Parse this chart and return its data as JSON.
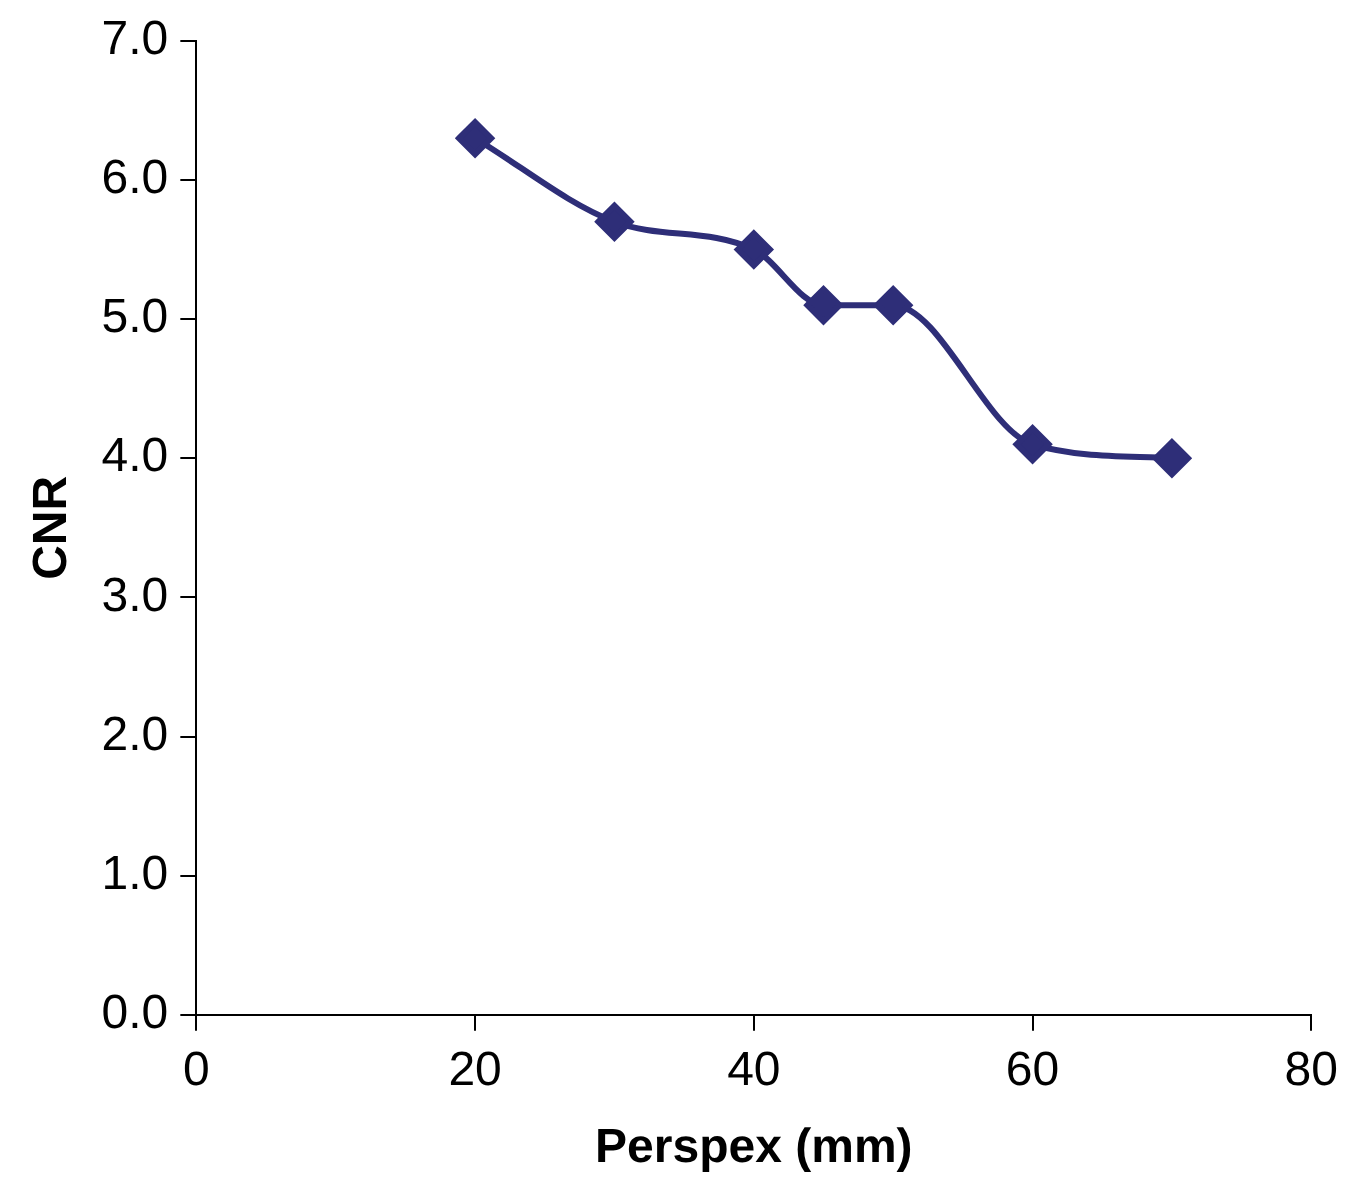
{
  "chart_data": {
    "type": "line",
    "xlabel": "Perspex (mm)",
    "ylabel": "CNR",
    "x": [
      20,
      30,
      40,
      45,
      50,
      60,
      70
    ],
    "series": [
      {
        "color": "#2e2e78",
        "values": [
          6.3,
          5.7,
          5.5,
          5.1,
          5.1,
          4.1,
          4.0
        ]
      }
    ],
    "xlim": [
      0,
      80
    ],
    "xticks": [
      0,
      20,
      40,
      60,
      80
    ],
    "ylim": [
      0,
      7
    ],
    "yticks": [
      {
        "value": 0,
        "label": "0.0"
      },
      {
        "value": 1,
        "label": "1.0"
      },
      {
        "value": 2,
        "label": "2.0"
      },
      {
        "value": 3,
        "label": "3.0"
      },
      {
        "value": 4,
        "label": "4.0"
      },
      {
        "value": 5,
        "label": "5.0"
      },
      {
        "value": 6,
        "label": "6.0"
      },
      {
        "value": 7,
        "label": "7.0"
      }
    ],
    "grid": false,
    "legend": false,
    "marker": "diamond",
    "line_style": "solid"
  }
}
